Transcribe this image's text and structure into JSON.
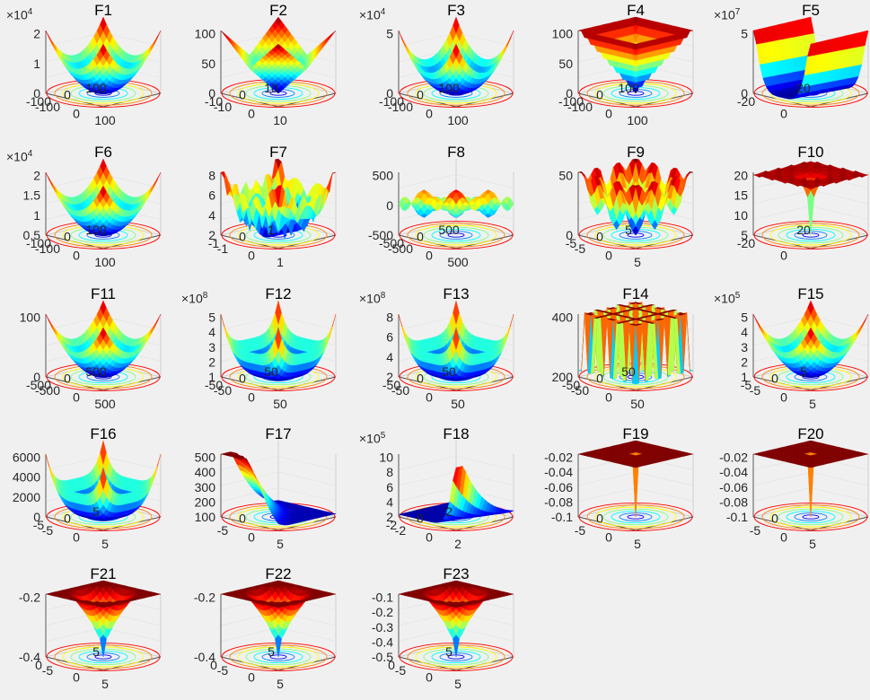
{
  "figure": {
    "background": "#f0f0f0",
    "colormap": "jet",
    "plot_style": "3D surface with contour projection on the floor"
  },
  "chart_data": [
    {
      "type": "surface",
      "title": "F1",
      "zscale": "×10",
      "zexp": "4",
      "zticks": [
        "0",
        "1",
        "2"
      ],
      "xticks": [
        "-100",
        "0",
        "100"
      ],
      "yticks": [
        "-100",
        "0",
        "100"
      ],
      "shape": "bowl"
    },
    {
      "type": "surface",
      "title": "F2",
      "zscale": "",
      "zexp": "",
      "zticks": [
        "0",
        "50",
        "100"
      ],
      "xticks": [
        "-10",
        "0",
        "10"
      ],
      "yticks": [
        "-10",
        "0",
        "10"
      ],
      "shape": "abs-peaks"
    },
    {
      "type": "surface",
      "title": "F3",
      "zscale": "×10",
      "zexp": "4",
      "zticks": [
        "0",
        "5"
      ],
      "xticks": [
        "-100",
        "0",
        "100"
      ],
      "yticks": [
        "-100",
        "0",
        "100"
      ],
      "shape": "bowl-tilt"
    },
    {
      "type": "surface",
      "title": "F4",
      "zscale": "",
      "zexp": "",
      "zticks": [
        "0",
        "50",
        "100"
      ],
      "xticks": [
        "-100",
        "0",
        "100"
      ],
      "yticks": [
        "-100",
        "0",
        "100"
      ],
      "shape": "pyramid"
    },
    {
      "type": "surface",
      "title": "F5",
      "zscale": "×10",
      "zexp": "7",
      "zticks": [
        "0",
        "5"
      ],
      "xticks": [
        "0"
      ],
      "yticks": [
        "-20",
        "20"
      ],
      "shape": "valley"
    },
    {
      "type": "surface",
      "title": "F6",
      "zscale": "×10",
      "zexp": "4",
      "zticks": [
        "0.5",
        "1",
        "1.5",
        "2"
      ],
      "xticks": [
        "-100",
        "0",
        "100"
      ],
      "yticks": [
        "-100",
        "0",
        "100"
      ],
      "shape": "bowl"
    },
    {
      "type": "surface",
      "title": "F7",
      "zscale": "",
      "zexp": "",
      "zticks": [
        "2",
        "4",
        "6",
        "8"
      ],
      "xticks": [
        "-1",
        "0",
        "1"
      ],
      "yticks": [
        "-1",
        "0",
        "1"
      ],
      "shape": "noisy-bowl"
    },
    {
      "type": "surface",
      "title": "F8",
      "zscale": "",
      "zexp": "",
      "zticks": [
        "-500",
        "0",
        "500"
      ],
      "xticks": [
        "-500",
        "0",
        "500"
      ],
      "yticks": [
        "-500",
        "0",
        "500"
      ],
      "shape": "schwefel"
    },
    {
      "type": "surface",
      "title": "F9",
      "zscale": "",
      "zexp": "",
      "zticks": [
        "0",
        "50"
      ],
      "xticks": [
        "-5",
        "0",
        "5"
      ],
      "yticks": [
        "-5",
        "0",
        "5"
      ],
      "shape": "rastrigin"
    },
    {
      "type": "surface",
      "title": "F10",
      "zscale": "",
      "zexp": "",
      "zticks": [
        "5",
        "10",
        "15",
        "20"
      ],
      "xticks": [
        "0"
      ],
      "yticks": [
        "-20",
        "20"
      ],
      "shape": "ackley"
    },
    {
      "type": "surface",
      "title": "F11",
      "zscale": "",
      "zexp": "",
      "zticks": [
        "0",
        "100"
      ],
      "xticks": [
        "-500",
        "0",
        "500"
      ],
      "yticks": [
        "-500",
        "0",
        "500"
      ],
      "shape": "bowl"
    },
    {
      "type": "surface",
      "title": "F12",
      "zscale": "×10",
      "zexp": "8",
      "zticks": [
        "1",
        "2",
        "3",
        "4",
        "5"
      ],
      "xticks": [
        "-50",
        "0",
        "50"
      ],
      "yticks": [
        "-50",
        "0",
        "50"
      ],
      "shape": "flat-bowl"
    },
    {
      "type": "surface",
      "title": "F13",
      "zscale": "×10",
      "zexp": "8",
      "zticks": [
        "2",
        "4",
        "6",
        "8"
      ],
      "xticks": [
        "-50",
        "0",
        "50"
      ],
      "yticks": [
        "-50",
        "0",
        "50"
      ],
      "shape": "flat-bowl"
    },
    {
      "type": "surface",
      "title": "F14",
      "zscale": "",
      "zexp": "",
      "zticks": [
        "200",
        "400"
      ],
      "xticks": [
        "-50",
        "0",
        "50"
      ],
      "yticks": [
        "-50",
        "0",
        "50"
      ],
      "shape": "foxholes"
    },
    {
      "type": "surface",
      "title": "F15",
      "zscale": "×10",
      "zexp": "5",
      "zticks": [
        "1",
        "2",
        "3",
        "4",
        "5"
      ],
      "xticks": [
        "-5",
        "0",
        "5"
      ],
      "yticks": [
        "-5",
        "0",
        "5"
      ],
      "shape": "bowl"
    },
    {
      "type": "surface",
      "title": "F16",
      "zscale": "",
      "zexp": "",
      "zticks": [
        "0",
        "2000",
        "4000",
        "6000"
      ],
      "xticks": [
        "-5",
        "0",
        "5"
      ],
      "yticks": [
        "-5",
        "0",
        "5"
      ],
      "shape": "flat-bowl"
    },
    {
      "type": "surface",
      "title": "F17",
      "zscale": "",
      "zexp": "",
      "zticks": [
        "100",
        "200",
        "300",
        "400",
        "500"
      ],
      "xticks": [
        "-5",
        "0",
        "5"
      ],
      "yticks": [
        "0"
      ],
      "shape": "branin"
    },
    {
      "type": "surface",
      "title": "F18",
      "zscale": "×10",
      "zexp": "5",
      "zticks": [
        "2",
        "4",
        "6",
        "8",
        "10"
      ],
      "xticks": [
        "-2",
        "0",
        "2"
      ],
      "yticks": [
        "-2",
        "0",
        "2"
      ],
      "shape": "goldstein"
    },
    {
      "type": "surface",
      "title": "F19",
      "zscale": "",
      "zexp": "",
      "zticks": [
        "-0.1",
        "-0.08",
        "-0.06",
        "-0.04",
        "-0.02"
      ],
      "xticks": [
        "-5",
        "0",
        "5"
      ],
      "yticks": [
        "0"
      ],
      "shape": "spike-down"
    },
    {
      "type": "surface",
      "title": "F20",
      "zscale": "",
      "zexp": "",
      "zticks": [
        "-0.1",
        "-0.08",
        "-0.06",
        "-0.04",
        "-0.02"
      ],
      "xticks": [
        "-5",
        "0",
        "5"
      ],
      "yticks": [
        "0"
      ],
      "shape": "spike-down"
    },
    {
      "type": "surface",
      "title": "F21",
      "zscale": "",
      "zexp": "",
      "zticks": [
        "-0.4",
        "-0.2"
      ],
      "xticks": [
        "-5",
        "0",
        "5"
      ],
      "yticks": [
        "0",
        "5"
      ],
      "shape": "funnel"
    },
    {
      "type": "surface",
      "title": "F22",
      "zscale": "",
      "zexp": "",
      "zticks": [
        "-0.4",
        "-0.2"
      ],
      "xticks": [
        "-5",
        "0",
        "5"
      ],
      "yticks": [
        "0",
        "5"
      ],
      "shape": "funnel"
    },
    {
      "type": "surface",
      "title": "F23",
      "zscale": "",
      "zexp": "",
      "zticks": [
        "-0.5",
        "-0.4",
        "-0.3",
        "-0.2",
        "-0.1"
      ],
      "xticks": [
        "-5",
        "0",
        "5"
      ],
      "yticks": [
        "0",
        "5"
      ],
      "shape": "funnel"
    }
  ]
}
